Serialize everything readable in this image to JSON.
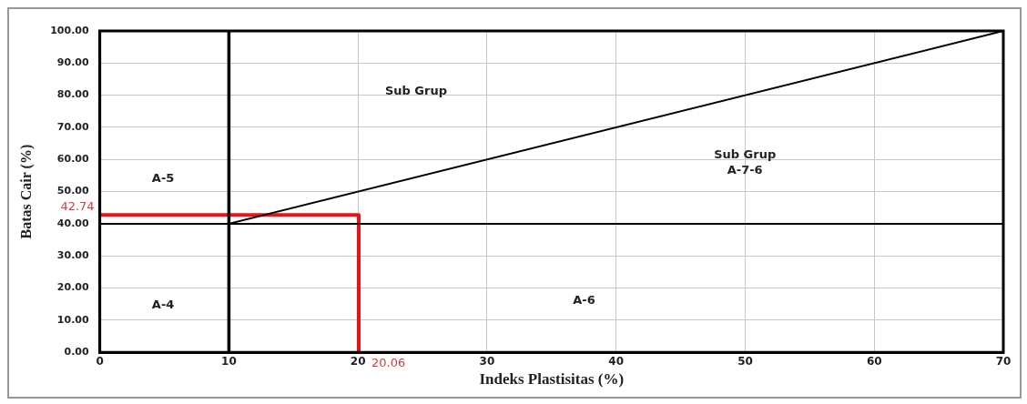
{
  "chart_data": {
    "type": "line",
    "xlabel": "Indeks Plastisitas (%)",
    "ylabel": "Batas Cair (%)",
    "xlim": [
      0,
      70
    ],
    "xticks": [
      0,
      10,
      20,
      30,
      40,
      50,
      60,
      70
    ],
    "ylim": [
      0,
      100
    ],
    "yticks": [
      {
        "value": 0,
        "label": "0.00"
      },
      {
        "value": 10,
        "label": "10.00"
      },
      {
        "value": 20,
        "label": "20.00"
      },
      {
        "value": 30,
        "label": "30.00"
      },
      {
        "value": 40,
        "label": "40.00"
      },
      {
        "value": 50,
        "label": "50.00"
      },
      {
        "value": 60,
        "label": "60.00"
      },
      {
        "value": 70,
        "label": "70.00"
      },
      {
        "value": 80,
        "label": "80.00"
      },
      {
        "value": 90,
        "label": "90.00"
      },
      {
        "value": 100,
        "label": "100.00"
      }
    ],
    "grid": true,
    "series": [
      {
        "type": "line",
        "color": "#000000",
        "x": [
          10,
          70
        ],
        "values": [
          40,
          100
        ]
      },
      {
        "type": "line",
        "color": "#e8141a",
        "x": [
          0,
          20.06,
          20.06
        ],
        "values": [
          42.74,
          42.74,
          0
        ]
      }
    ],
    "ref_lines": [
      {
        "axis": "x",
        "value": 10,
        "color": "#000000"
      },
      {
        "axis": "y",
        "value": 40,
        "color": "#000000"
      }
    ],
    "annotations": [
      "Sub Grup",
      "A-5",
      "A-4",
      "A-6",
      "Sub Grup\nA-7-6",
      {
        "text": "42.74",
        "x": 0,
        "y": 42.74
      },
      {
        "text": "20.06",
        "x": 20.06,
        "y": 0
      }
    ]
  }
}
